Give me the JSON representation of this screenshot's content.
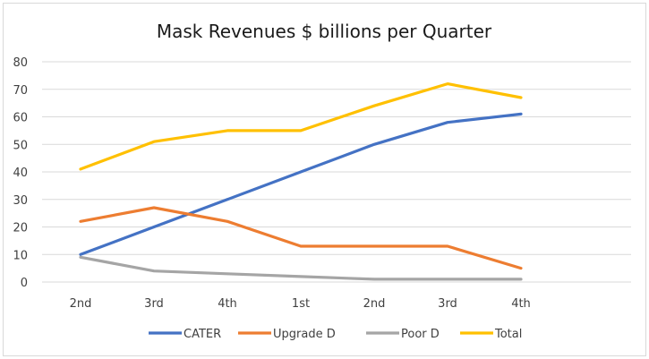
{
  "chart_data": {
    "type": "line",
    "title": "Mask  Revenues $ billions per Quarter",
    "xlabel": "",
    "ylabel": "",
    "categories": [
      "2nd",
      "3rd",
      "4th",
      "1st",
      "2nd",
      "3rd",
      "4th",
      ""
    ],
    "ylim": [
      0,
      80
    ],
    "yticks": [
      0,
      10,
      20,
      30,
      40,
      50,
      60,
      70,
      80
    ],
    "grid": true,
    "legend_position": "bottom",
    "series": [
      {
        "name": "CATER",
        "color": "#4472C4",
        "values": [
          10,
          20,
          30,
          40,
          50,
          58,
          61,
          null
        ]
      },
      {
        "name": "Upgrade D",
        "color": "#ED7D31",
        "values": [
          22,
          27,
          22,
          13,
          13,
          13,
          5,
          null
        ]
      },
      {
        "name": "Poor D",
        "color": "#A5A5A5",
        "values": [
          9,
          4,
          3,
          2,
          1,
          1,
          1,
          null
        ]
      },
      {
        "name": "Total",
        "color": "#FFC000",
        "values": [
          41,
          51,
          55,
          55,
          64,
          72,
          67,
          null
        ]
      }
    ]
  }
}
